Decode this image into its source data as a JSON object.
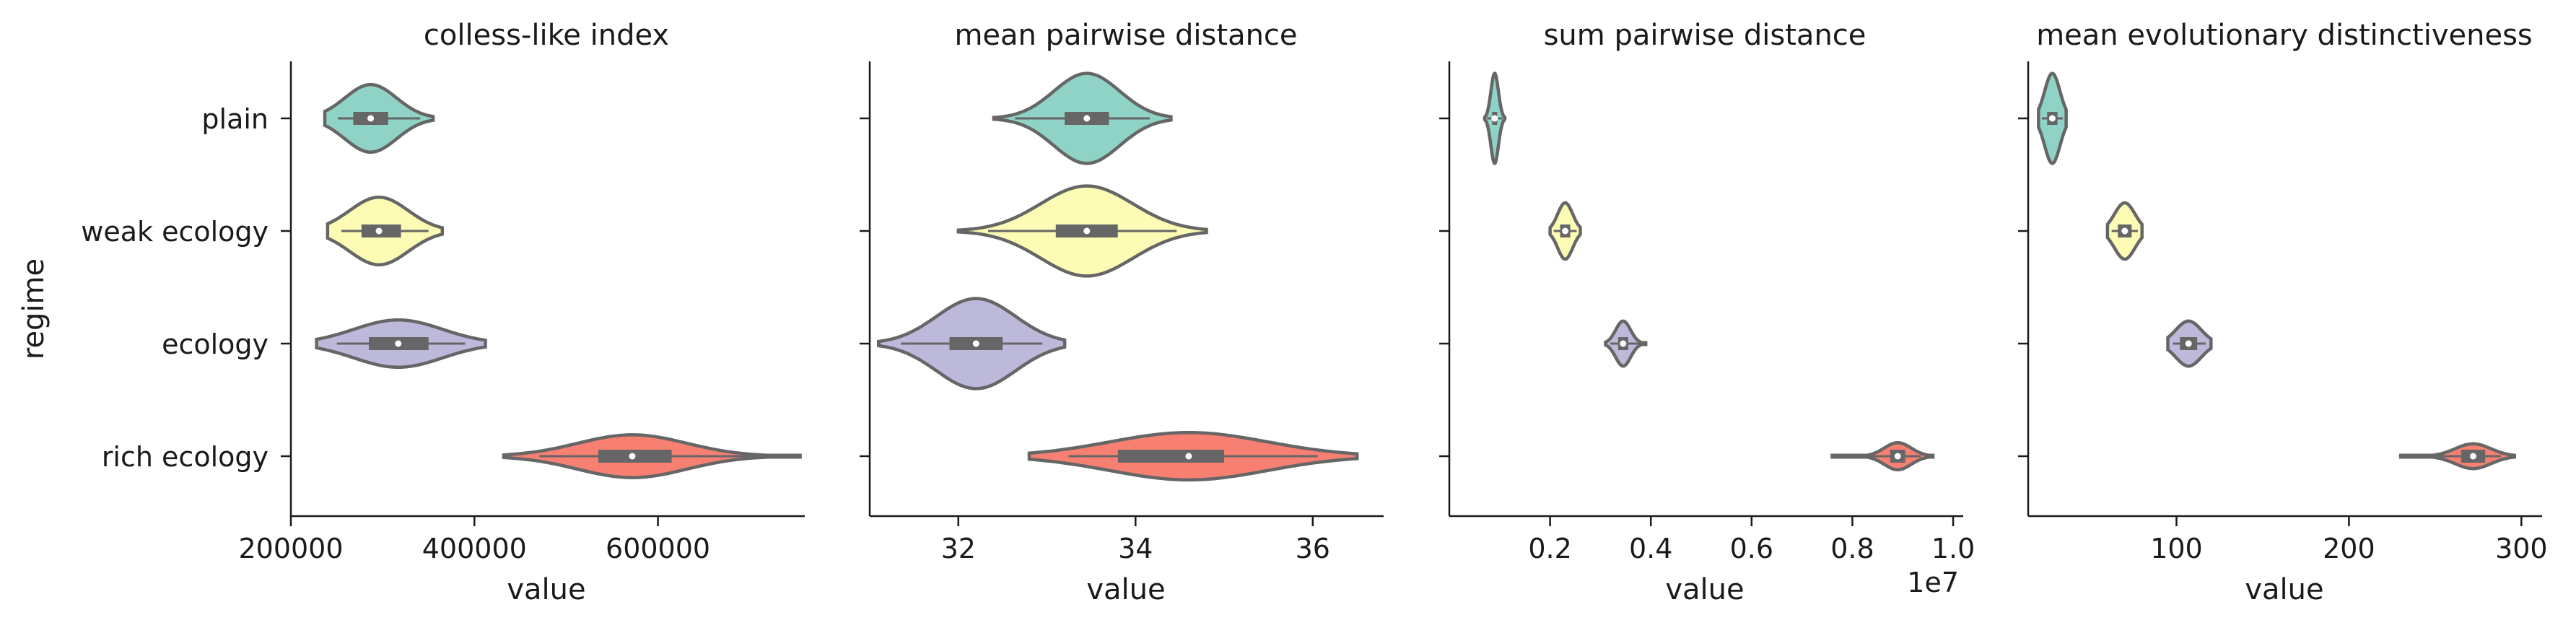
{
  "chart_data": {
    "type": "violin",
    "ylabel": "regime",
    "categories": [
      "plain",
      "weak ecology",
      "ecology",
      "rich ecology"
    ],
    "colors": [
      "#8fd3c7",
      "#fcfcb4",
      "#bdb9da",
      "#f88072"
    ],
    "panels": [
      {
        "title": "colless-like index",
        "xlabel": "value",
        "xlim": [
          200000,
          760000
        ],
        "xticks": [
          200000,
          400000,
          600000
        ],
        "xtick_labels": [
          "200000",
          "400000",
          "600000"
        ],
        "offset_label": "",
        "series": [
          {
            "name": "plain",
            "min": 237000,
            "q1": 268000,
            "median": 287000,
            "q3": 306000,
            "max": 355000,
            "hw": 0.3
          },
          {
            "name": "weak ecology",
            "min": 240000,
            "q1": 277000,
            "median": 296000,
            "q3": 320000,
            "max": 365000,
            "hw": 0.3
          },
          {
            "name": "ecology",
            "min": 228000,
            "q1": 285000,
            "median": 317000,
            "q3": 350000,
            "max": 412000,
            "hw": 0.21
          },
          {
            "name": "rich ecology",
            "min": 432000,
            "q1": 535000,
            "median": 572000,
            "q3": 615000,
            "max": 755000,
            "hw": 0.19
          }
        ]
      },
      {
        "title": "mean pairwise distance",
        "xlabel": "value",
        "xlim": [
          31.0,
          36.8
        ],
        "xticks": [
          32,
          34,
          36
        ],
        "xtick_labels": [
          "32",
          "34",
          "36"
        ],
        "offset_label": "",
        "series": [
          {
            "name": "plain",
            "min": 32.4,
            "q1": 33.2,
            "median": 33.45,
            "q3": 33.7,
            "max": 34.4,
            "hw": 0.4
          },
          {
            "name": "weak ecology",
            "min": 32.0,
            "q1": 33.1,
            "median": 33.45,
            "q3": 33.8,
            "max": 34.8,
            "hw": 0.4
          },
          {
            "name": "ecology",
            "min": 31.1,
            "q1": 31.9,
            "median": 32.2,
            "q3": 32.5,
            "max": 33.2,
            "hw": 0.4
          },
          {
            "name": "rich ecology",
            "min": 32.8,
            "q1": 33.8,
            "median": 34.6,
            "q3": 35.0,
            "max": 36.5,
            "hw": 0.21
          }
        ]
      },
      {
        "title": "sum pairwise distance",
        "xlabel": "value",
        "xlim": [
          0.0,
          1.02
        ],
        "xticks": [
          0.2,
          0.4,
          0.6,
          0.8,
          1.0
        ],
        "xtick_labels": [
          "0.2",
          "0.4",
          "0.6",
          "0.8",
          "1.0"
        ],
        "offset_label": "1e7",
        "series": [
          {
            "name": "plain",
            "min": 0.07,
            "q1": 0.085,
            "median": 0.09,
            "q3": 0.095,
            "max": 0.11,
            "hw": 0.4
          },
          {
            "name": "weak ecology",
            "min": 0.2,
            "q1": 0.22,
            "median": 0.23,
            "q3": 0.24,
            "max": 0.26,
            "hw": 0.25
          },
          {
            "name": "ecology",
            "min": 0.31,
            "q1": 0.335,
            "median": 0.345,
            "q3": 0.355,
            "max": 0.39,
            "hw": 0.2
          },
          {
            "name": "rich ecology",
            "min": 0.76,
            "q1": 0.875,
            "median": 0.89,
            "q3": 0.905,
            "max": 0.96,
            "hw": 0.12
          }
        ]
      },
      {
        "title": "mean evolutionary distinctiveness",
        "xlabel": "value",
        "xlim": [
          14,
          312
        ],
        "xticks": [
          100,
          200,
          300
        ],
        "xtick_labels": [
          "100",
          "200",
          "300"
        ],
        "offset_label": "",
        "series": [
          {
            "name": "plain",
            "min": 20,
            "q1": 25,
            "median": 28,
            "q3": 31,
            "max": 36,
            "hw": 0.4
          },
          {
            "name": "weak ecology",
            "min": 60,
            "q1": 66,
            "median": 70,
            "q3": 74,
            "max": 80,
            "hw": 0.25
          },
          {
            "name": "ecology",
            "min": 95,
            "q1": 102,
            "median": 107,
            "q3": 112,
            "max": 120,
            "hw": 0.2
          },
          {
            "name": "rich ecology",
            "min": 230,
            "q1": 265,
            "median": 272,
            "q3": 279,
            "max": 296,
            "hw": 0.11
          }
        ]
      }
    ]
  }
}
